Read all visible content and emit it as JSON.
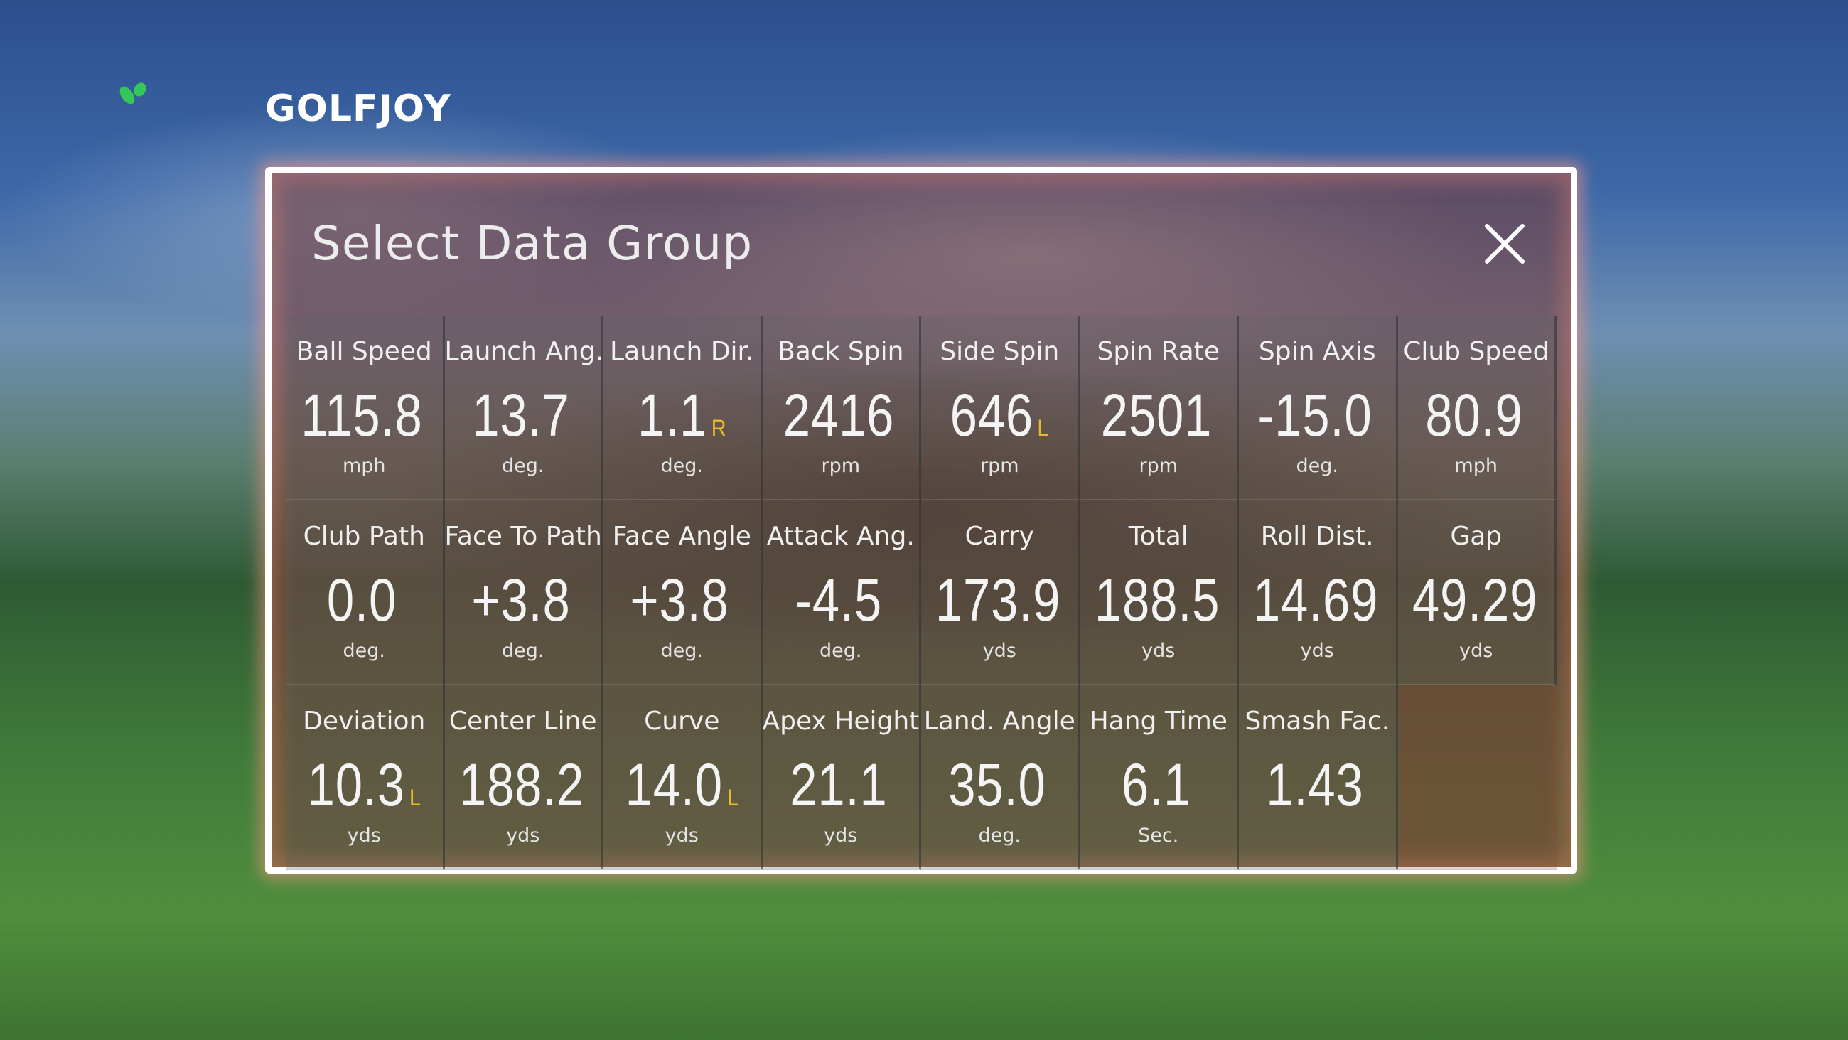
{
  "brand": {
    "logo_text": "GOLFJOY",
    "leaf_color": "#34c759"
  },
  "dialog": {
    "title": "Select Data Group",
    "close_icon": "close-icon"
  },
  "accent": {
    "direction_color": "#e9b92a",
    "border_color": "#ffffff"
  },
  "metrics": [
    {
      "label": "Ball Speed",
      "value": "115.8",
      "dir": "",
      "unit": "mph"
    },
    {
      "label": "Launch Ang.",
      "value": "13.7",
      "dir": "",
      "unit": "deg."
    },
    {
      "label": "Launch Dir.",
      "value": "1.1",
      "dir": "R",
      "unit": "deg."
    },
    {
      "label": "Back Spin",
      "value": "2416",
      "dir": "",
      "unit": "rpm"
    },
    {
      "label": "Side Spin",
      "value": "646",
      "dir": "L",
      "unit": "rpm"
    },
    {
      "label": "Spin Rate",
      "value": "2501",
      "dir": "",
      "unit": "rpm"
    },
    {
      "label": "Spin Axis",
      "value": "-15.0",
      "dir": "",
      "unit": "deg."
    },
    {
      "label": "Club Speed",
      "value": "80.9",
      "dir": "",
      "unit": "mph"
    },
    {
      "label": "Club Path",
      "value": "0.0",
      "dir": "",
      "unit": "deg."
    },
    {
      "label": "Face To Path",
      "value": "+3.8",
      "dir": "",
      "unit": "deg."
    },
    {
      "label": "Face Angle",
      "value": "+3.8",
      "dir": "",
      "unit": "deg."
    },
    {
      "label": "Attack Ang.",
      "value": "-4.5",
      "dir": "",
      "unit": "deg."
    },
    {
      "label": "Carry",
      "value": "173.9",
      "dir": "",
      "unit": "yds"
    },
    {
      "label": "Total",
      "value": "188.5",
      "dir": "",
      "unit": "yds"
    },
    {
      "label": "Roll Dist.",
      "value": "14.69",
      "dir": "",
      "unit": "yds"
    },
    {
      "label": "Gap",
      "value": "49.29",
      "dir": "",
      "unit": "yds"
    },
    {
      "label": "Deviation",
      "value": "10.3",
      "dir": "L",
      "unit": "yds"
    },
    {
      "label": "Center Line",
      "value": "188.2",
      "dir": "",
      "unit": "yds"
    },
    {
      "label": "Curve",
      "value": "14.0",
      "dir": "L",
      "unit": "yds"
    },
    {
      "label": "Apex Height",
      "value": "21.1",
      "dir": "",
      "unit": "yds"
    },
    {
      "label": "Land. Angle",
      "value": "35.0",
      "dir": "",
      "unit": "deg."
    },
    {
      "label": "Hang Time",
      "value": "6.1",
      "dir": "",
      "unit": "Sec."
    },
    {
      "label": "Smash Fac.",
      "value": "1.43",
      "dir": "",
      "unit": ""
    }
  ]
}
